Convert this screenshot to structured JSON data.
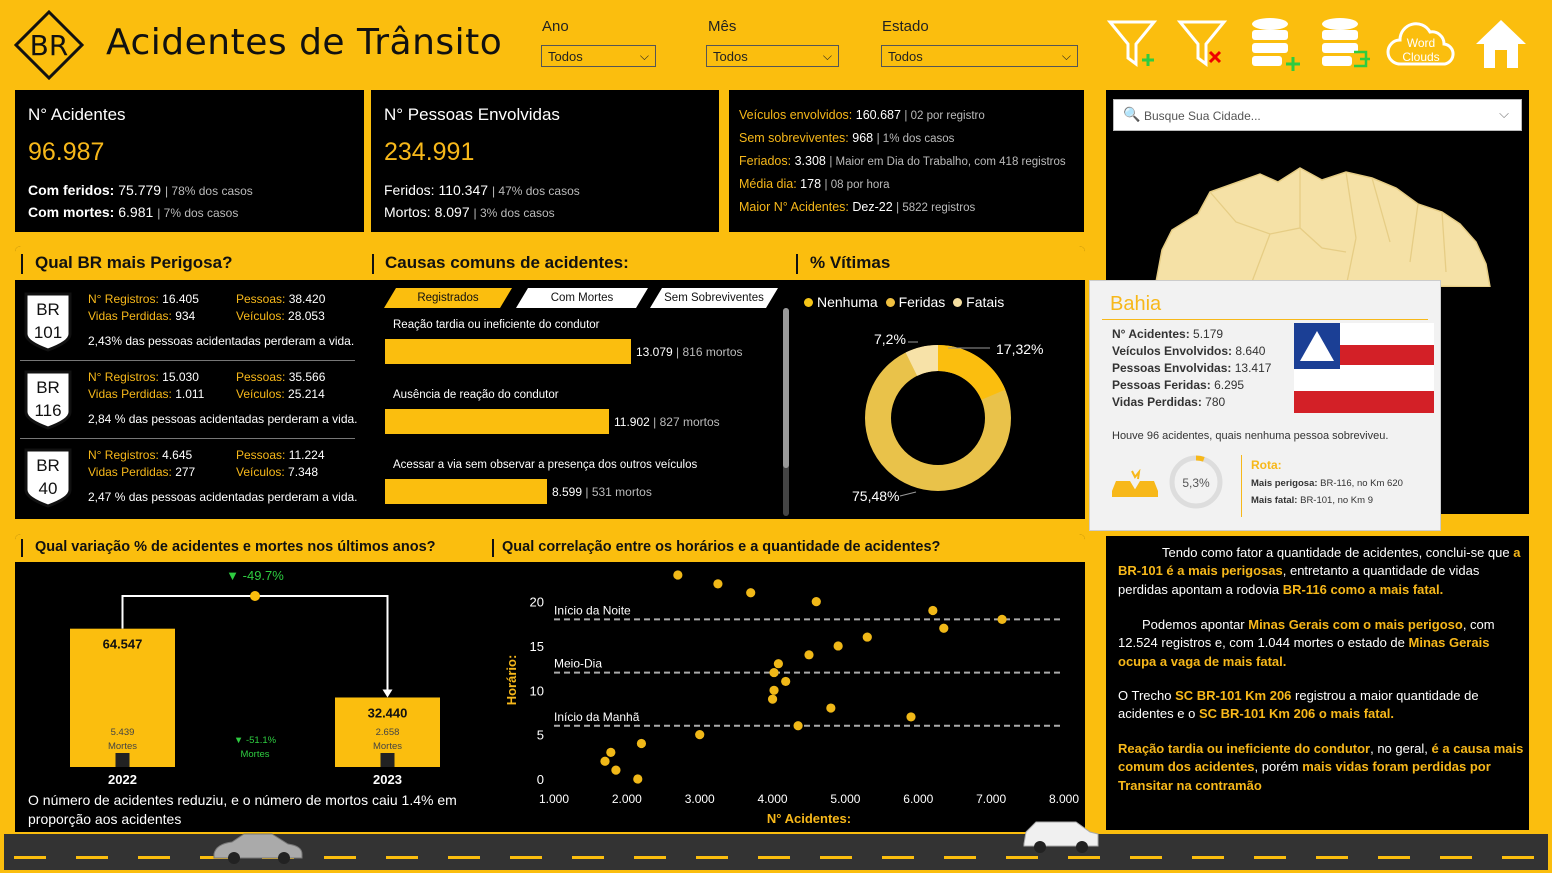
{
  "header": {
    "logo_text": "BR",
    "title": "Acidentes de Trânsito",
    "filters": [
      {
        "label": "Ano",
        "value": "Todos"
      },
      {
        "label": "Mês",
        "value": "Todos"
      },
      {
        "label": "Estado",
        "value": "Todos"
      }
    ],
    "icons": [
      "filter-add-icon",
      "filter-clear-icon",
      "database-add-icon",
      "database-export-icon",
      "word-clouds-icon",
      "home-icon"
    ],
    "word_clouds": [
      "Word",
      "Clouds"
    ]
  },
  "kpi_acidentes": {
    "title": "N° Acidentes",
    "value": "96.987",
    "feridos_label": "Com feridos:",
    "feridos_value": "75.779",
    "feridos_pct": "| 78% dos casos",
    "mortes_label": "Com mortes:",
    "mortes_value": "6.981",
    "mortes_pct": "| 7% dos casos"
  },
  "kpi_pessoas": {
    "title": "N° Pessoas Envolvidas",
    "value": "234.991",
    "feridos_label": "Feridos:",
    "feridos_value": "110.347",
    "feridos_pct": "| 47% dos casos",
    "mortos_label": "Mortos:",
    "mortos_value": "8.097",
    "mortos_pct": "| 3% dos casos"
  },
  "kpi_stats": [
    {
      "label": "Veículos envolvidos:",
      "value": "160.687",
      "note": "| 02 por registro"
    },
    {
      "label": "Sem sobreviventes:",
      "value": "968",
      "note": "| 1% dos casos"
    },
    {
      "label": "Feriados:",
      "value": "3.308",
      "note": "| Maior em Dia do Trabalho, com 418 registros"
    },
    {
      "label": "Média dia:",
      "value": "178",
      "note": "| 08 por hora"
    },
    {
      "label": "Maior N° Acidentes:",
      "value": "Dez-22",
      "note": "| 5822 registros"
    }
  ],
  "br_section": {
    "title": "Qual BR mais Perigosa?",
    "items": [
      {
        "br": "BR",
        "num": "101",
        "registros_label": "N° Registros:",
        "registros": "16.405",
        "pessoas_label": "Pessoas:",
        "pessoas": "38.420",
        "vidas_label": "Vidas Perdidas:",
        "vidas": "934",
        "veiculos_label": "Veículos:",
        "veiculos": "28.053",
        "pct": "2,43% das pessoas acidentadas perderam a vida."
      },
      {
        "br": "BR",
        "num": "116",
        "registros_label": "N° Registros:",
        "registros": "15.030",
        "pessoas_label": "Pessoas:",
        "pessoas": "35.566",
        "vidas_label": "Vidas Perdidas:",
        "vidas": "1.011",
        "veiculos_label": "Veículos:",
        "veiculos": "25.214",
        "pct": "2,84 % das pessoas acidentadas perderam a vida."
      },
      {
        "br": "BR",
        "num": "40",
        "registros_label": "N° Registros:",
        "registros": "4.645",
        "pessoas_label": "Pessoas:",
        "pessoas": "11.224",
        "vidas_label": "Vidas Perdidas:",
        "vidas": "277",
        "veiculos_label": "Veículos:",
        "veiculos": "7.348",
        "pct": "2,47 % das pessoas acidentadas perderam a vida."
      }
    ]
  },
  "causas": {
    "title": "Causas comuns de acidentes:",
    "tabs": [
      "Registrados",
      "Com Mortes",
      "Sem Sobreviventes"
    ],
    "items": [
      {
        "label": "Reação tardia ou ineficiente do condutor",
        "value": 13079,
        "value_text": "13.079",
        "mortos": "| 816 mortos"
      },
      {
        "label": "Ausência de reação do condutor",
        "value": 11902,
        "value_text": "11.902",
        "mortos": "| 827 mortos"
      },
      {
        "label": "Acessar a via sem observar a presença dos outros veículos",
        "value": 8599,
        "value_text": "8.599",
        "mortos": "| 531 mortos"
      }
    ]
  },
  "vitimas": {
    "title": "% Vítimas",
    "legend": [
      "Nenhuma",
      "Feridas",
      "Fatais"
    ],
    "labels": [
      "75,48%",
      "17,32%",
      "7,2%"
    ]
  },
  "map_panel": {
    "search_placeholder": "Busque Sua Cidade...",
    "tooltip": {
      "state": "Bahia",
      "rows": [
        {
          "label": "N° Acidentes:",
          "value": "5.179"
        },
        {
          "label": "Veículos Envolvidos:",
          "value": "8.640"
        },
        {
          "label": "Pessoas Envolvidas:",
          "value": "13.417"
        },
        {
          "label": "Pessoas Feridas:",
          "value": "6.295"
        },
        {
          "label": "Vidas Perdidas:",
          "value": "780"
        }
      ],
      "note": "Houve 96 acidentes, quais nenhuma pessoa sobreviveu.",
      "gauge": "5,3%",
      "gauge_value": 5.3,
      "rota_title": "Rota:",
      "perigosa_label": "Mais perigosa:",
      "perigosa": "BR-116, no Km 620",
      "fatal_label": "Mais fatal:",
      "fatal": "BR-101, no Km 9"
    }
  },
  "variacao": {
    "title": "Qual variação % de acidentes e mortes nos últimos anos?",
    "delta_total": "▼ -49.7%",
    "delta_mortes": "▼ -51.1%",
    "delta_mortes_label": "Mortes",
    "years": [
      {
        "year": "2022",
        "value": 64547,
        "value_text": "64.547",
        "mortes": "5.439",
        "mortes_label": "Mortes"
      },
      {
        "year": "2023",
        "value": 32440,
        "value_text": "32.440",
        "mortes": "2.658",
        "mortes_label": "Mortes"
      }
    ],
    "caption": "O número de acidentes reduziu, e o número de mortos caiu 1.4% em proporção aos acidentes"
  },
  "chart_data": {
    "type": "scatter",
    "title": "Qual correlação entre os horários e a quantidade de acidentes?",
    "xlabel": "N° Acidentes:",
    "ylabel": "Horário:",
    "xlim": [
      1000,
      8000
    ],
    "ylim": [
      0,
      23
    ],
    "xticks": [
      "1.000",
      "2.000",
      "3.000",
      "4.000",
      "5.000",
      "6.000",
      "7.000",
      "8.000"
    ],
    "yticks": [
      "0",
      "5",
      "10",
      "15",
      "20"
    ],
    "reference_lines": [
      {
        "label": "Início da Noite",
        "y": 18
      },
      {
        "label": "Meio-Dia",
        "y": 12
      },
      {
        "label": "Início da Manhã",
        "y": 6
      }
    ],
    "points": [
      [
        2150,
        0
      ],
      [
        1850,
        1
      ],
      [
        1700,
        2
      ],
      [
        1780,
        3
      ],
      [
        2200,
        4
      ],
      [
        3000,
        5
      ],
      [
        4350,
        6
      ],
      [
        5900,
        7
      ],
      [
        4800,
        8
      ],
      [
        4000,
        9
      ],
      [
        4020,
        10
      ],
      [
        4180,
        11
      ],
      [
        4020,
        12
      ],
      [
        4080,
        13
      ],
      [
        4500,
        14
      ],
      [
        4900,
        15
      ],
      [
        5300,
        16
      ],
      [
        6350,
        17
      ],
      [
        7150,
        18
      ],
      [
        6200,
        19
      ],
      [
        4600,
        20
      ],
      [
        3700,
        21
      ],
      [
        3250,
        22
      ],
      [
        2700,
        23
      ]
    ]
  },
  "conclusao": {
    "p1a": "Tendo como fator a quantidade de acidentes, conclui-se que ",
    "p1b": "a BR-101 é a mais perigosas",
    "p1c": ", entretanto a quantidade de vidas perdidas apontam a rodovia ",
    "p1d": "BR-116 como a mais fatal.",
    "p2a": "Podemos apontar ",
    "p2b": "Minas Gerais com o mais perigoso",
    "p2c": ", com 12.524 registros e, com 1.044 mortes o estado de ",
    "p2d": "Minas Gerais ocupa a vaga de mais fatal.",
    "p3a": "O Trecho ",
    "p3b": "SC BR-101 Km 206",
    "p3c": " registrou a maior quantidade de acidentes e o ",
    "p3d": "SC BR-101 Km 206 o mais fatal.",
    "p4a": "Reação tardia ou ineficiente do condutor",
    "p4b": ", no geral, ",
    "p4c": "é a causa mais comum dos acidentes",
    "p4d": ", porém ",
    "p4e": "mais vidas foram perdidas por Transitar na contramão"
  },
  "colors": {
    "accent": "#fbbe0e",
    "panel": "#000000",
    "highlight": "#f7b81a",
    "positive": "#2ecc40"
  }
}
